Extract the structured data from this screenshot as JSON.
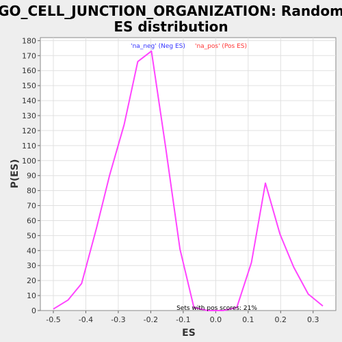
{
  "chart_data": {
    "type": "line",
    "title_line1": "GO_CELL_JUNCTION_ORGANIZATION: Random",
    "title_line2": "ES distribution",
    "xlabel": "ES",
    "ylabel": "P(ES)",
    "xlim": [
      -0.54,
      0.37
    ],
    "ylim": [
      0,
      182
    ],
    "x_ticks": [
      -0.5,
      -0.4,
      -0.3,
      -0.2,
      -0.1,
      0.0,
      0.1,
      0.2,
      0.3
    ],
    "x_tick_labels": [
      "-0.5",
      "-0.4",
      "-0.3",
      "-0.2",
      "-0.1",
      "0.0",
      "0.1",
      "0.2",
      "0.3"
    ],
    "y_ticks": [
      0,
      10,
      20,
      30,
      40,
      50,
      60,
      70,
      80,
      90,
      100,
      110,
      120,
      130,
      140,
      150,
      160,
      170,
      180
    ],
    "y_tick_labels": [
      "0",
      "10",
      "20",
      "30",
      "40",
      "50",
      "60",
      "70",
      "80",
      "90",
      "100",
      "110",
      "120",
      "130",
      "140",
      "150",
      "160",
      "170",
      "180"
    ],
    "grid": true,
    "legend": [
      {
        "label": "'na_neg' (Neg ES)",
        "color": "#3333ff"
      },
      {
        "label": "'na_pos' (Pos ES)",
        "color": "#ff3333"
      }
    ],
    "annotation": "Sets with pos scores: 21%",
    "series": [
      {
        "color": "#ff44ff",
        "x": [
          -0.5,
          -0.455,
          -0.413,
          -0.367,
          -0.327,
          -0.282,
          -0.24,
          -0.198,
          -0.155,
          -0.11,
          -0.067,
          -0.025,
          0.023,
          0.065,
          0.11,
          0.153,
          0.198,
          0.24,
          0.285,
          0.33
        ],
        "y": [
          1,
          7,
          18,
          55,
          90,
          124,
          166,
          173,
          110,
          41,
          2,
          0,
          0,
          2,
          32,
          85,
          51,
          29,
          11,
          3
        ]
      }
    ]
  }
}
